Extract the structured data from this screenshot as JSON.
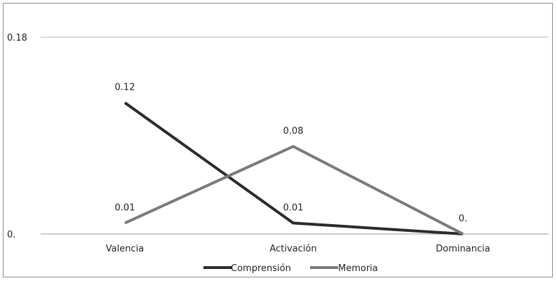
{
  "chart_data": {
    "type": "line",
    "categories": [
      "Valencia",
      "Activación",
      "Dominancia"
    ],
    "series": [
      {
        "name": "Comprensión",
        "values": [
          0.12,
          0.01,
          0.0
        ],
        "labels": [
          "0.12",
          "0.01",
          "0."
        ],
        "color": "#2b2b2b"
      },
      {
        "name": "Memoria",
        "values": [
          0.01,
          0.08,
          0.0
        ],
        "labels": [
          "0.01",
          "0.08",
          ""
        ],
        "color": "#7a7a7a"
      }
    ],
    "yticks": [
      {
        "value": 0.0,
        "label": "0."
      },
      {
        "value": 0.18,
        "label": "0.18"
      }
    ],
    "ylim": [
      0,
      0.18
    ],
    "grid": true,
    "legend_position": "bottom"
  }
}
